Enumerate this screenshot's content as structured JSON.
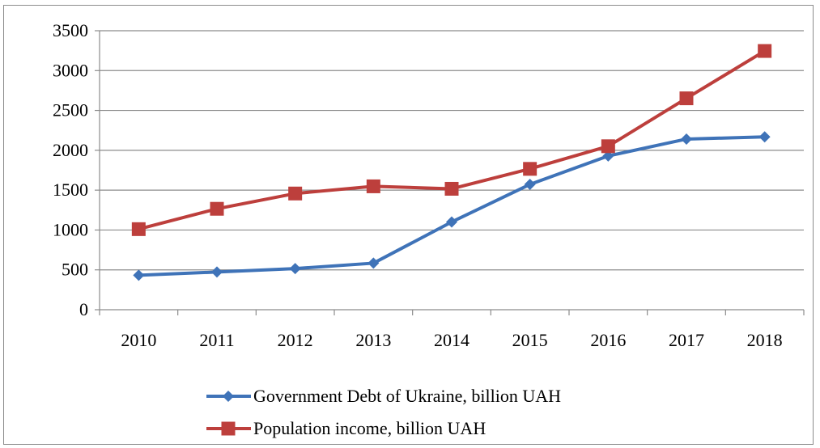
{
  "chart_data": {
    "type": "line",
    "categories": [
      "2010",
      "2011",
      "2012",
      "2013",
      "2014",
      "2015",
      "2016",
      "2017",
      "2018"
    ],
    "ylim": [
      0,
      3500
    ],
    "yticks": [
      "0",
      "500",
      "1000",
      "1500",
      "2000",
      "2500",
      "3000",
      "3500"
    ],
    "grid": true,
    "legend_position": "bottom",
    "series": [
      {
        "name": "Government Debt of Ukraine, billion UAH",
        "values": [
          432,
          473,
          516,
          584,
          1101,
          1572,
          1929,
          2141,
          2168
        ],
        "color": "#3f73b8",
        "marker": "diamond"
      },
      {
        "name": "Population income, billion UAH",
        "values": [
          1011,
          1266,
          1458,
          1548,
          1517,
          1767,
          2051,
          2652,
          3246
        ],
        "color": "#bd3f3c",
        "marker": "square"
      }
    ]
  }
}
